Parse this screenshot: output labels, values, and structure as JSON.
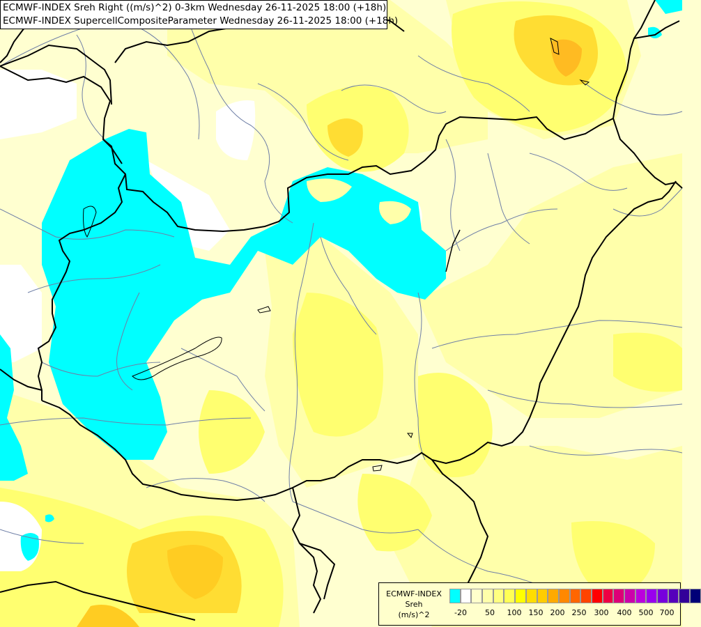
{
  "header": {
    "line1": "ECMWF-INDEX Sreh Right ((m/s)^2) 0-3km Wednesday 26-11-2025 18:00 (+18h)",
    "line2": "ECMWF-INDEX SupercellCompositeParameter Wednesday 26-11-2025 18:00 (+18h)"
  },
  "legend": {
    "title_line1": "ECMWF-INDEX",
    "title_line2": "Sreh",
    "title_line3": "(m/s)^2",
    "colors": [
      "#00ffff",
      "#ffffff",
      "#ffffcc",
      "#ffffaa",
      "#ffff80",
      "#ffff55",
      "#ffff00",
      "#ffdd00",
      "#ffcc00",
      "#ffaa00",
      "#ff8800",
      "#ff6600",
      "#ff4400",
      "#ff0000",
      "#ee0044",
      "#dd0077",
      "#cc00aa",
      "#bb00dd",
      "#9900ee",
      "#7700dd",
      "#5500bb",
      "#330099",
      "#000077"
    ],
    "tick_labels": [
      "-20",
      "50",
      "100",
      "150",
      "200",
      "250",
      "300",
      "400",
      "500",
      "700"
    ]
  },
  "map": {
    "colors": {
      "base": "#ffffd0",
      "light_yellow": "#ffffaa",
      "yellow": "#ffff70",
      "mid_yellow": "#ffff40",
      "gold": "#ffee22",
      "orange": "#ffcc22",
      "cyan": "#00ffff",
      "white": "#ffffff"
    }
  }
}
